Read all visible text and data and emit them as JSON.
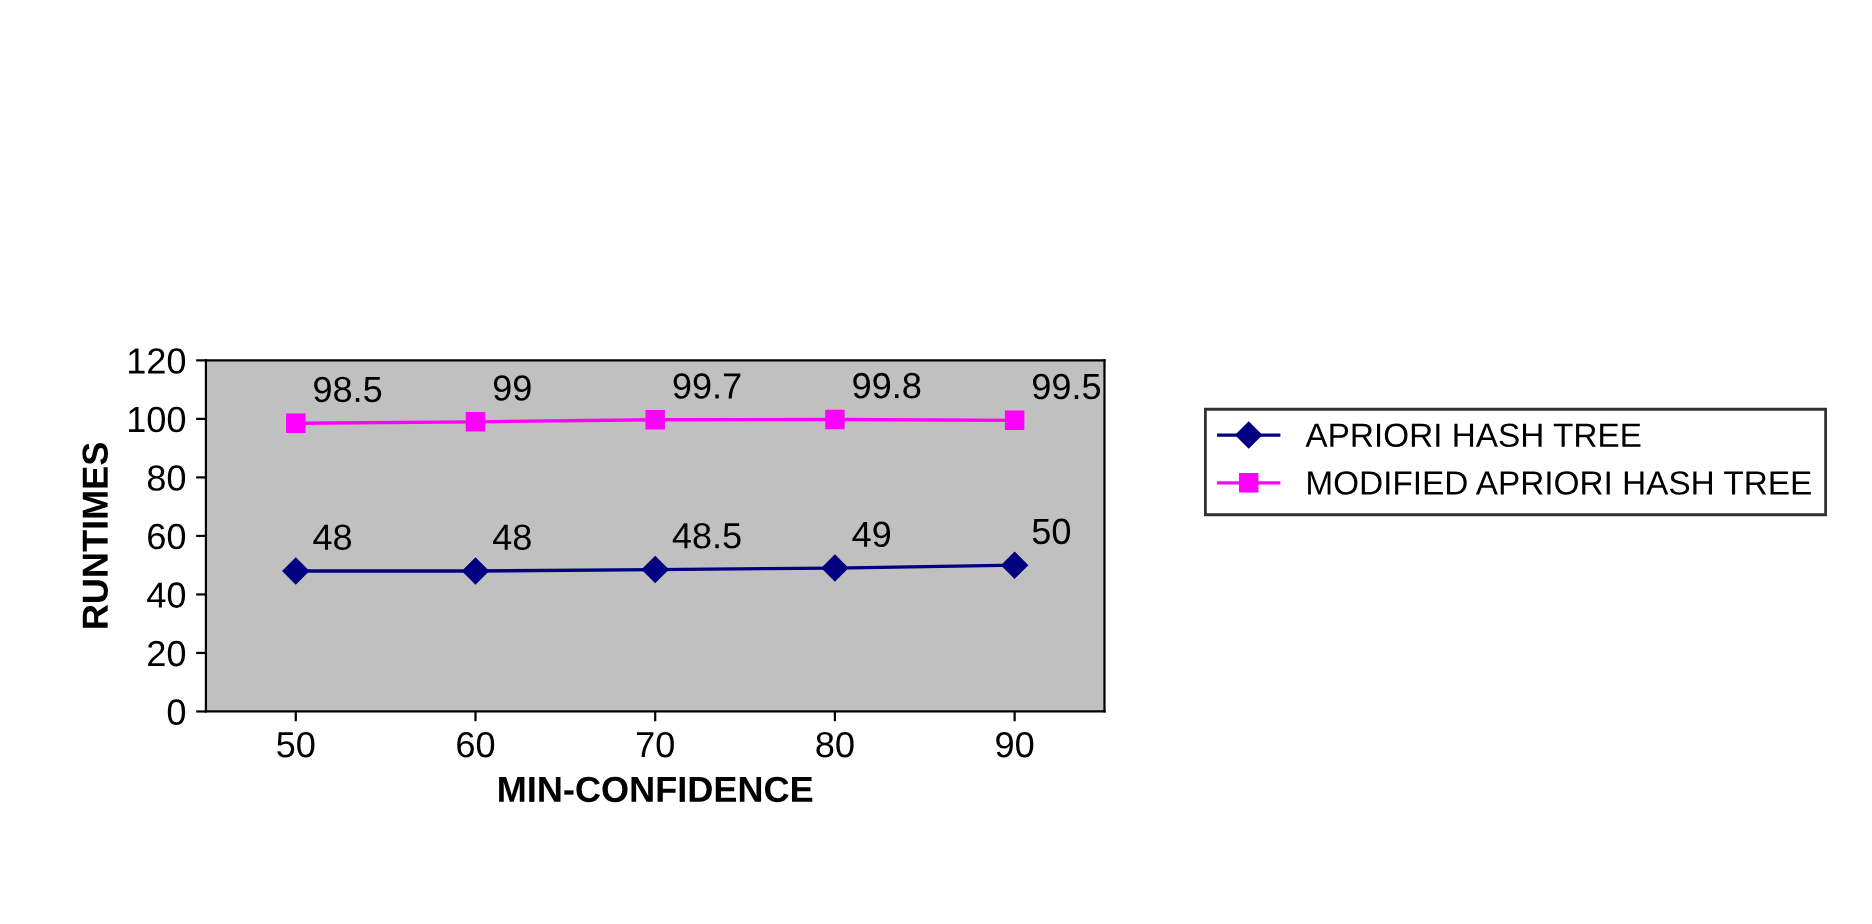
{
  "chart_data": {
    "type": "line",
    "xlabel": "MIN-CONFIDENCE",
    "ylabel": "RUNTIMES",
    "categories": [
      "50",
      "60",
      "70",
      "80",
      "90"
    ],
    "series": [
      {
        "name": "APRIORI HASH TREE",
        "color": "#000080",
        "marker": "diamond",
        "values": [
          48,
          48,
          48.5,
          49,
          50
        ]
      },
      {
        "name": "MODIFIED APRIORI HASH TREE",
        "color": "#ff00ff",
        "marker": "square",
        "values": [
          98.5,
          99,
          99.7,
          99.8,
          99.5
        ]
      }
    ],
    "ylim": [
      0,
      120
    ],
    "yticks": [
      0,
      20,
      40,
      60,
      80,
      100,
      120
    ],
    "grid": false,
    "legend": "right",
    "data_labels": true
  }
}
